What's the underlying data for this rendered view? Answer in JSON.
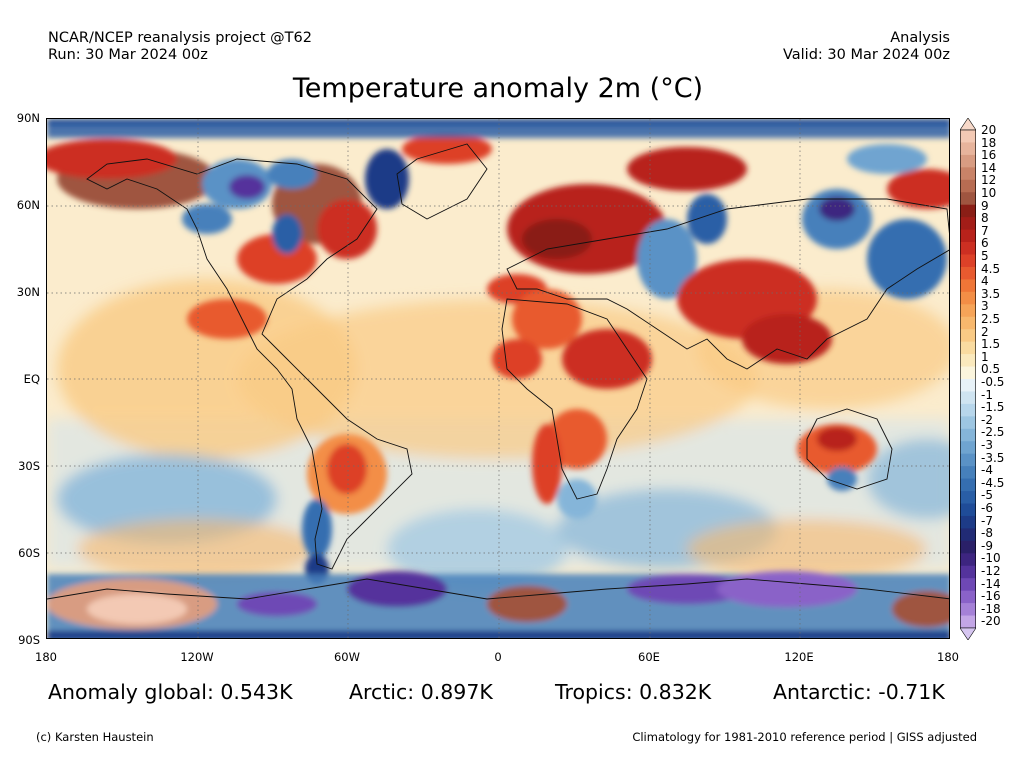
{
  "header": {
    "project": "NCAR/NCEP reanalysis project @T62",
    "run": "Run: 30 Mar 2024 00z",
    "kind": "Analysis",
    "valid": "Valid: 30 Mar 2024 00z"
  },
  "title": "Temperature anomaly 2m (°C)",
  "map": {
    "projection": "equirectangular",
    "lat_labels": [
      "90N",
      "60N",
      "30N",
      "EQ",
      "30S",
      "60S",
      "90S"
    ],
    "lon_labels": [
      "180",
      "120W",
      "60W",
      "0",
      "60E",
      "120E",
      "180"
    ],
    "grid_lines": "dotted"
  },
  "colorbar": {
    "labels": [
      "20",
      "18",
      "16",
      "14",
      "12",
      "10",
      "9",
      "8",
      "7",
      "6",
      "5",
      "4.5",
      "4",
      "3.5",
      "3",
      "2.5",
      "2",
      "1.5",
      "1",
      "0.5",
      "-0.5",
      "-1",
      "-1.5",
      "-2",
      "-2.5",
      "-3",
      "-3.5",
      "-4",
      "-4.5",
      "-5",
      "-6",
      "-7",
      "-8",
      "-9",
      "-10",
      "-12",
      "-14",
      "-16",
      "-18",
      "-20"
    ],
    "colors": [
      "#f3c9b4",
      "#e7b49c",
      "#d89c82",
      "#c98368",
      "#b76c52",
      "#9f5540",
      "#8a1e16",
      "#a31d18",
      "#b8221b",
      "#cc2f22",
      "#dd4128",
      "#e85a2f",
      "#ef7637",
      "#f38e46",
      "#f6a458",
      "#f8b86d",
      "#f9ca85",
      "#f9dba0",
      "#fae9bd",
      "#fbf5dd",
      "#e8f2f8",
      "#cfe4f1",
      "#b7d6eb",
      "#9dc6e2",
      "#85b5d9",
      "#6fa4d0",
      "#5a92c6",
      "#4680bb",
      "#356eb0",
      "#295ea6",
      "#1f4c98",
      "#1d3b87",
      "#212b75",
      "#2a2068",
      "#3d2580",
      "#54339c",
      "#6e48b5",
      "#8a62c8",
      "#a581d7",
      "#c3a6e6"
    ],
    "top_arrow_color": "#f7d9c9",
    "bottom_arrow_color": "#d6c6f0"
  },
  "stats": {
    "global": "Anomaly global: 0.543K",
    "arctic": "Arctic: 0.897K",
    "tropics": "Tropics: 0.832K",
    "antarctic": "Antarctic: -0.71K"
  },
  "footer": {
    "credit": "(c) Karsten Haustein",
    "note": "Climatology for 1981-2010 reference period | GISS adjusted"
  }
}
